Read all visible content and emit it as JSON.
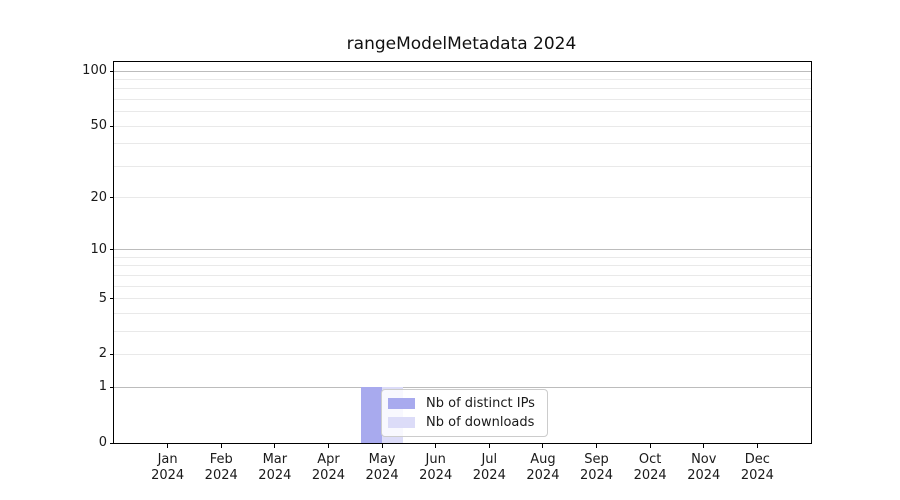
{
  "title": "rangeModelMetadata 2024",
  "colors": {
    "background": "#ffffff",
    "bar_distinct_ips": "#a8aaee",
    "bar_downloads": "#dcdcf8",
    "grid_major": "#bcbcbc",
    "grid_minor": "#e9e9e9",
    "axis": "#000000",
    "text": "#1a1a1a",
    "legend_border": "#cccccc"
  },
  "chart_data": {
    "type": "bar",
    "title": "rangeModelMetadata 2024",
    "categories": [
      "Jan",
      "Feb",
      "Mar",
      "Apr",
      "May",
      "Jun",
      "Jul",
      "Aug",
      "Sep",
      "Oct",
      "Nov",
      "Dec"
    ],
    "category_year": "2024",
    "series": [
      {
        "name": "Nb of distinct IPs",
        "color": "#a8aaee",
        "values": [
          0,
          0,
          0,
          0,
          1,
          0,
          0,
          0,
          0,
          0,
          0,
          0
        ]
      },
      {
        "name": "Nb of downloads",
        "color": "#dcdcf8",
        "values": [
          0,
          0,
          0,
          0,
          1,
          0,
          0,
          0,
          0,
          0,
          0,
          0
        ]
      }
    ],
    "xlabel": "",
    "ylabel": "",
    "yscale": "log1p",
    "ylim": [
      0,
      112
    ],
    "yticks_labeled": [
      0,
      1,
      2,
      5,
      10,
      20,
      50,
      100
    ],
    "gridlines_major": [
      1,
      10,
      100
    ],
    "gridlines_minor": [
      2,
      3,
      4,
      5,
      6,
      7,
      8,
      9,
      20,
      30,
      40,
      50,
      60,
      70,
      80,
      90
    ],
    "grid": "on",
    "legend_position": "inside-bottom-center"
  }
}
